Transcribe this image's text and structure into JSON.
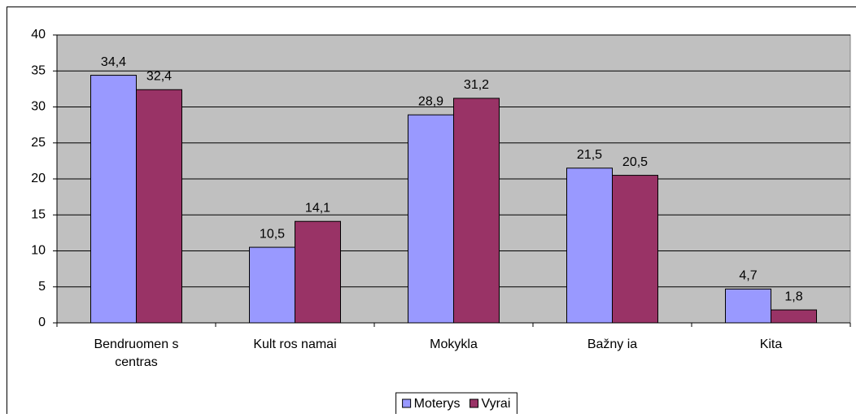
{
  "chart_data": {
    "type": "bar",
    "categories": [
      "Bendruomen s centras",
      "Kult ros namai",
      "Mokykla",
      "Bažny ia",
      "Kita"
    ],
    "series": [
      {
        "name": "Moterys",
        "color": "#9999ff",
        "values": [
          34.4,
          10.5,
          28.9,
          21.5,
          4.7
        ],
        "value_labels": [
          "34,4",
          "10,5",
          "28,9",
          "21,5",
          "4,7"
        ]
      },
      {
        "name": "Vyrai",
        "color": "#993366",
        "values": [
          32.4,
          14.1,
          31.2,
          20.5,
          1.8
        ],
        "value_labels": [
          "32,4",
          "14,1",
          "31,2",
          "20,5",
          "1,8"
        ]
      }
    ],
    "ylim": [
      0,
      40
    ],
    "yticks": [
      0,
      5,
      10,
      15,
      20,
      25,
      30,
      35,
      40
    ],
    "grid": true,
    "plot_background": "#c0c0c0",
    "legend": "bottom"
  }
}
